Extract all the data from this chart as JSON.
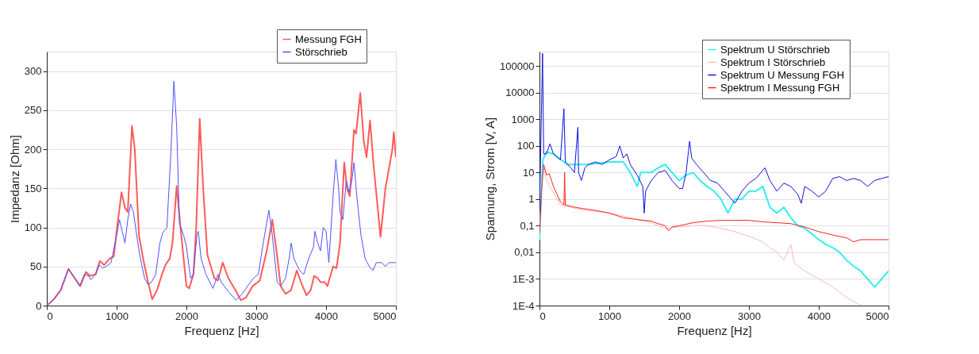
{
  "chart_data": [
    {
      "type": "line",
      "xlabel": "Frequenz [Hz]",
      "ylabel": "Impedanz [Ohm]",
      "xlim": [
        0,
        5000
      ],
      "xticks": [
        0,
        1000,
        2000,
        3000,
        4000,
        5000
      ],
      "ylim": [
        0,
        325
      ],
      "yticks": [
        0,
        50,
        100,
        150,
        200,
        250,
        300
      ],
      "grid": "y",
      "legend": "top right",
      "marker": "none",
      "line_style": "solid",
      "series": [
        {
          "name": "Messung FGH",
          "color": "#ff5a5a",
          "x": [
            0,
            100,
            200,
            310,
            400,
            480,
            560,
            620,
            700,
            760,
            820,
            900,
            960,
            1000,
            1070,
            1120,
            1160,
            1220,
            1260,
            1320,
            1380,
            1450,
            1510,
            1580,
            1650,
            1700,
            1760,
            1800,
            1860,
            1920,
            2000,
            2040,
            2100,
            2140,
            2190,
            2240,
            2300,
            2400,
            2450,
            2520,
            2600,
            2700,
            2780,
            2850,
            2950,
            3050,
            3150,
            3230,
            3290,
            3350,
            3420,
            3500,
            3580,
            3640,
            3720,
            3780,
            3830,
            3880,
            3920,
            3980,
            4020,
            4100,
            4150,
            4200,
            4260,
            4300,
            4340,
            4400,
            4430,
            4490,
            4540,
            4580,
            4630,
            4680,
            4780,
            4850,
            4900,
            4950,
            4970,
            5000
          ],
          "values": [
            0,
            8,
            20,
            47,
            35,
            25,
            43,
            38,
            40,
            57,
            52,
            60,
            63,
            95,
            145,
            125,
            120,
            230,
            200,
            90,
            60,
            30,
            8,
            20,
            40,
            52,
            60,
            80,
            153,
            95,
            25,
            22,
            40,
            100,
            239,
            150,
            65,
            35,
            32,
            55,
            35,
            20,
            7,
            10,
            25,
            32,
            70,
            110,
            70,
            25,
            15,
            20,
            45,
            30,
            13,
            20,
            38,
            35,
            30,
            30,
            25,
            50,
            48,
            80,
            183,
            150,
            140,
            225,
            220,
            272,
            210,
            190,
            237,
            180,
            88,
            150,
            175,
            200,
            222,
            190
          ]
        },
        {
          "name": "Störschrieb",
          "color": "#5050ff",
          "x": [
            0,
            100,
            200,
            310,
            400,
            470,
            540,
            600,
            630,
            700,
            750,
            800,
            850,
            920,
            1000,
            1040,
            1080,
            1120,
            1160,
            1200,
            1240,
            1280,
            1330,
            1400,
            1450,
            1500,
            1560,
            1620,
            1660,
            1720,
            1780,
            1820,
            1860,
            1900,
            1960,
            2000,
            2060,
            2100,
            2150,
            2170,
            2210,
            2280,
            2380,
            2450,
            2500,
            2600,
            2710,
            2800,
            2900,
            2960,
            3030,
            3100,
            3180,
            3230,
            3300,
            3350,
            3420,
            3480,
            3500,
            3540,
            3620,
            3680,
            3750,
            3820,
            3840,
            3880,
            3920,
            3960,
            4000,
            4040,
            4100,
            4140,
            4180,
            4200,
            4240,
            4290,
            4330,
            4370,
            4400,
            4440,
            4500,
            4560,
            4620,
            4670,
            4720,
            4800,
            4850,
            4900,
            4950,
            5000
          ],
          "values": [
            0,
            8,
            20,
            47,
            35,
            25,
            40,
            38,
            33,
            40,
            52,
            48,
            50,
            55,
            90,
            110,
            95,
            80,
            110,
            130,
            120,
            95,
            65,
            35,
            27,
            30,
            40,
            80,
            93,
            100,
            200,
            287,
            230,
            105,
            90,
            75,
            35,
            40,
            90,
            95,
            60,
            40,
            22,
            40,
            30,
            18,
            7,
            15,
            28,
            35,
            40,
            80,
            122,
            90,
            30,
            25,
            35,
            65,
            80,
            60,
            45,
            40,
            60,
            75,
            95,
            80,
            70,
            100,
            95,
            55,
            140,
            187,
            150,
            120,
            110,
            160,
            145,
            160,
            183,
            140,
            90,
            60,
            50,
            45,
            55,
            55,
            50,
            55,
            55,
            55
          ]
        }
      ]
    },
    {
      "type": "line",
      "xlabel": "Frequenz [Hz]",
      "ylabel": "Spannung, Strom [V, A]",
      "log": "y",
      "xlim": [
        0,
        5000
      ],
      "xticks": [
        0,
        1000,
        2000,
        3000,
        4000,
        5000
      ],
      "ylim": [
        0.0001,
        350000
      ],
      "yticks": [
        {
          "value": 0.0001,
          "label": "1E-4"
        },
        {
          "value": 0.001,
          "label": "1E-3"
        },
        {
          "value": 0.01,
          "label": "0,01"
        },
        {
          "value": 0.1,
          "label": "0,1"
        },
        1,
        10,
        100,
        1000,
        10000,
        100000
      ],
      "grid": "y",
      "legend": "top right",
      "marker": "none",
      "line_style": "solid",
      "series": [
        {
          "name": "Spektrum U Störschrieb",
          "color": "#33eeee",
          "x": [
            0,
            30,
            50,
            100,
            200,
            400,
            700,
            1000,
            1200,
            1300,
            1400,
            1450,
            1600,
            1700,
            1800,
            1900,
            2000,
            2100,
            2200,
            2300,
            2400,
            2500,
            2600,
            2700,
            2800,
            2900,
            3000,
            3100,
            3200,
            3300,
            3400,
            3500,
            3600,
            3700,
            3800,
            3900,
            4000,
            4100,
            4200,
            4300,
            4400,
            4500,
            4600,
            4700,
            4800,
            4900,
            5000
          ],
          "values": [
            0.03,
            3,
            30,
            60,
            50,
            20,
            20,
            25,
            25,
            10,
            3,
            10,
            10,
            15,
            20,
            10,
            5,
            8,
            10,
            5,
            3,
            2,
            1,
            0.3,
            1,
            1,
            2,
            2,
            3,
            0.5,
            0.3,
            0.5,
            0.2,
            0.1,
            0.08,
            0.05,
            0.03,
            0.02,
            0.015,
            0.01,
            0.005,
            0.003,
            0.002,
            0.001,
            0.0005,
            0.001,
            0.002
          ]
        },
        {
          "name": "Spektrum I Störschrieb",
          "color": "#ffb8b8",
          "x": [
            50,
            100,
            300,
            600,
            1000,
            1300,
            1600,
            1800,
            2000,
            2200,
            2400,
            2600,
            2800,
            3000,
            3200,
            3300,
            3400,
            3500,
            3600,
            3650,
            3800,
            4000,
            4200,
            4400,
            4600
          ],
          "values": [
            20,
            5,
            0.6,
            0.4,
            0.3,
            0.2,
            0.13,
            0.08,
            0.09,
            0.1,
            0.1,
            0.08,
            0.06,
            0.04,
            0.025,
            0.015,
            0.01,
            0.005,
            0.02,
            0.004,
            0.002,
            0.001,
            0.0005,
            0.0002,
            0.0001
          ]
        },
        {
          "name": "Spektrum U Messung FGH",
          "color": "#1010e0",
          "x": [
            0,
            44,
            60,
            100,
            150,
            200,
            300,
            350,
            370,
            450,
            500,
            550,
            560,
            600,
            650,
            700,
            800,
            900,
            1000,
            1100,
            1150,
            1200,
            1250,
            1300,
            1400,
            1480,
            1500,
            1520,
            1600,
            1700,
            1800,
            1900,
            2000,
            2050,
            2100,
            2150,
            2180,
            2250,
            2350,
            2450,
            2550,
            2650,
            2750,
            2800,
            2900,
            3000,
            3100,
            3230,
            3300,
            3400,
            3500,
            3600,
            3700,
            3750,
            3800,
            3900,
            4000,
            4100,
            4200,
            4300,
            4400,
            4500,
            4600,
            4700,
            4800,
            4900,
            5000
          ],
          "values": [
            0.3,
            300000,
            50,
            50,
            120,
            50,
            30,
            2500,
            25,
            15,
            10,
            500,
            10,
            5,
            15,
            20,
            25,
            20,
            30,
            40,
            100,
            35,
            50,
            20,
            8,
            3,
            0.3,
            2,
            5,
            10,
            12,
            5,
            2.5,
            2.5,
            10,
            150,
            35,
            20,
            10,
            5,
            4,
            2,
            1,
            0.7,
            2,
            4,
            6,
            15,
            5,
            2,
            4,
            3,
            1.5,
            0.7,
            3,
            2,
            1.2,
            2,
            6,
            7,
            5,
            6,
            5,
            3,
            5,
            6,
            7
          ]
        },
        {
          "name": "Spektrum I Messung FGH",
          "color": "#ff2020",
          "x": [
            0,
            30,
            60,
            100,
            140,
            200,
            300,
            350,
            360,
            370,
            500,
            600,
            800,
            1000,
            1200,
            1400,
            1600,
            1700,
            1800,
            1850,
            1900,
            2000,
            2200,
            2400,
            2600,
            2800,
            3000,
            3200,
            3400,
            3600,
            3800,
            4000,
            4200,
            4400,
            4500,
            4600,
            4800,
            5000
          ],
          "values": [
            0.05,
            2,
            20,
            8,
            9,
            3,
            0.8,
            0.6,
            10,
            0.6,
            0.5,
            0.45,
            0.38,
            0.3,
            0.2,
            0.17,
            0.15,
            0.12,
            0.1,
            0.065,
            0.09,
            0.1,
            0.13,
            0.15,
            0.16,
            0.16,
            0.16,
            0.14,
            0.13,
            0.12,
            0.09,
            0.06,
            0.045,
            0.035,
            0.025,
            0.03,
            0.03,
            0.03
          ]
        }
      ]
    }
  ]
}
